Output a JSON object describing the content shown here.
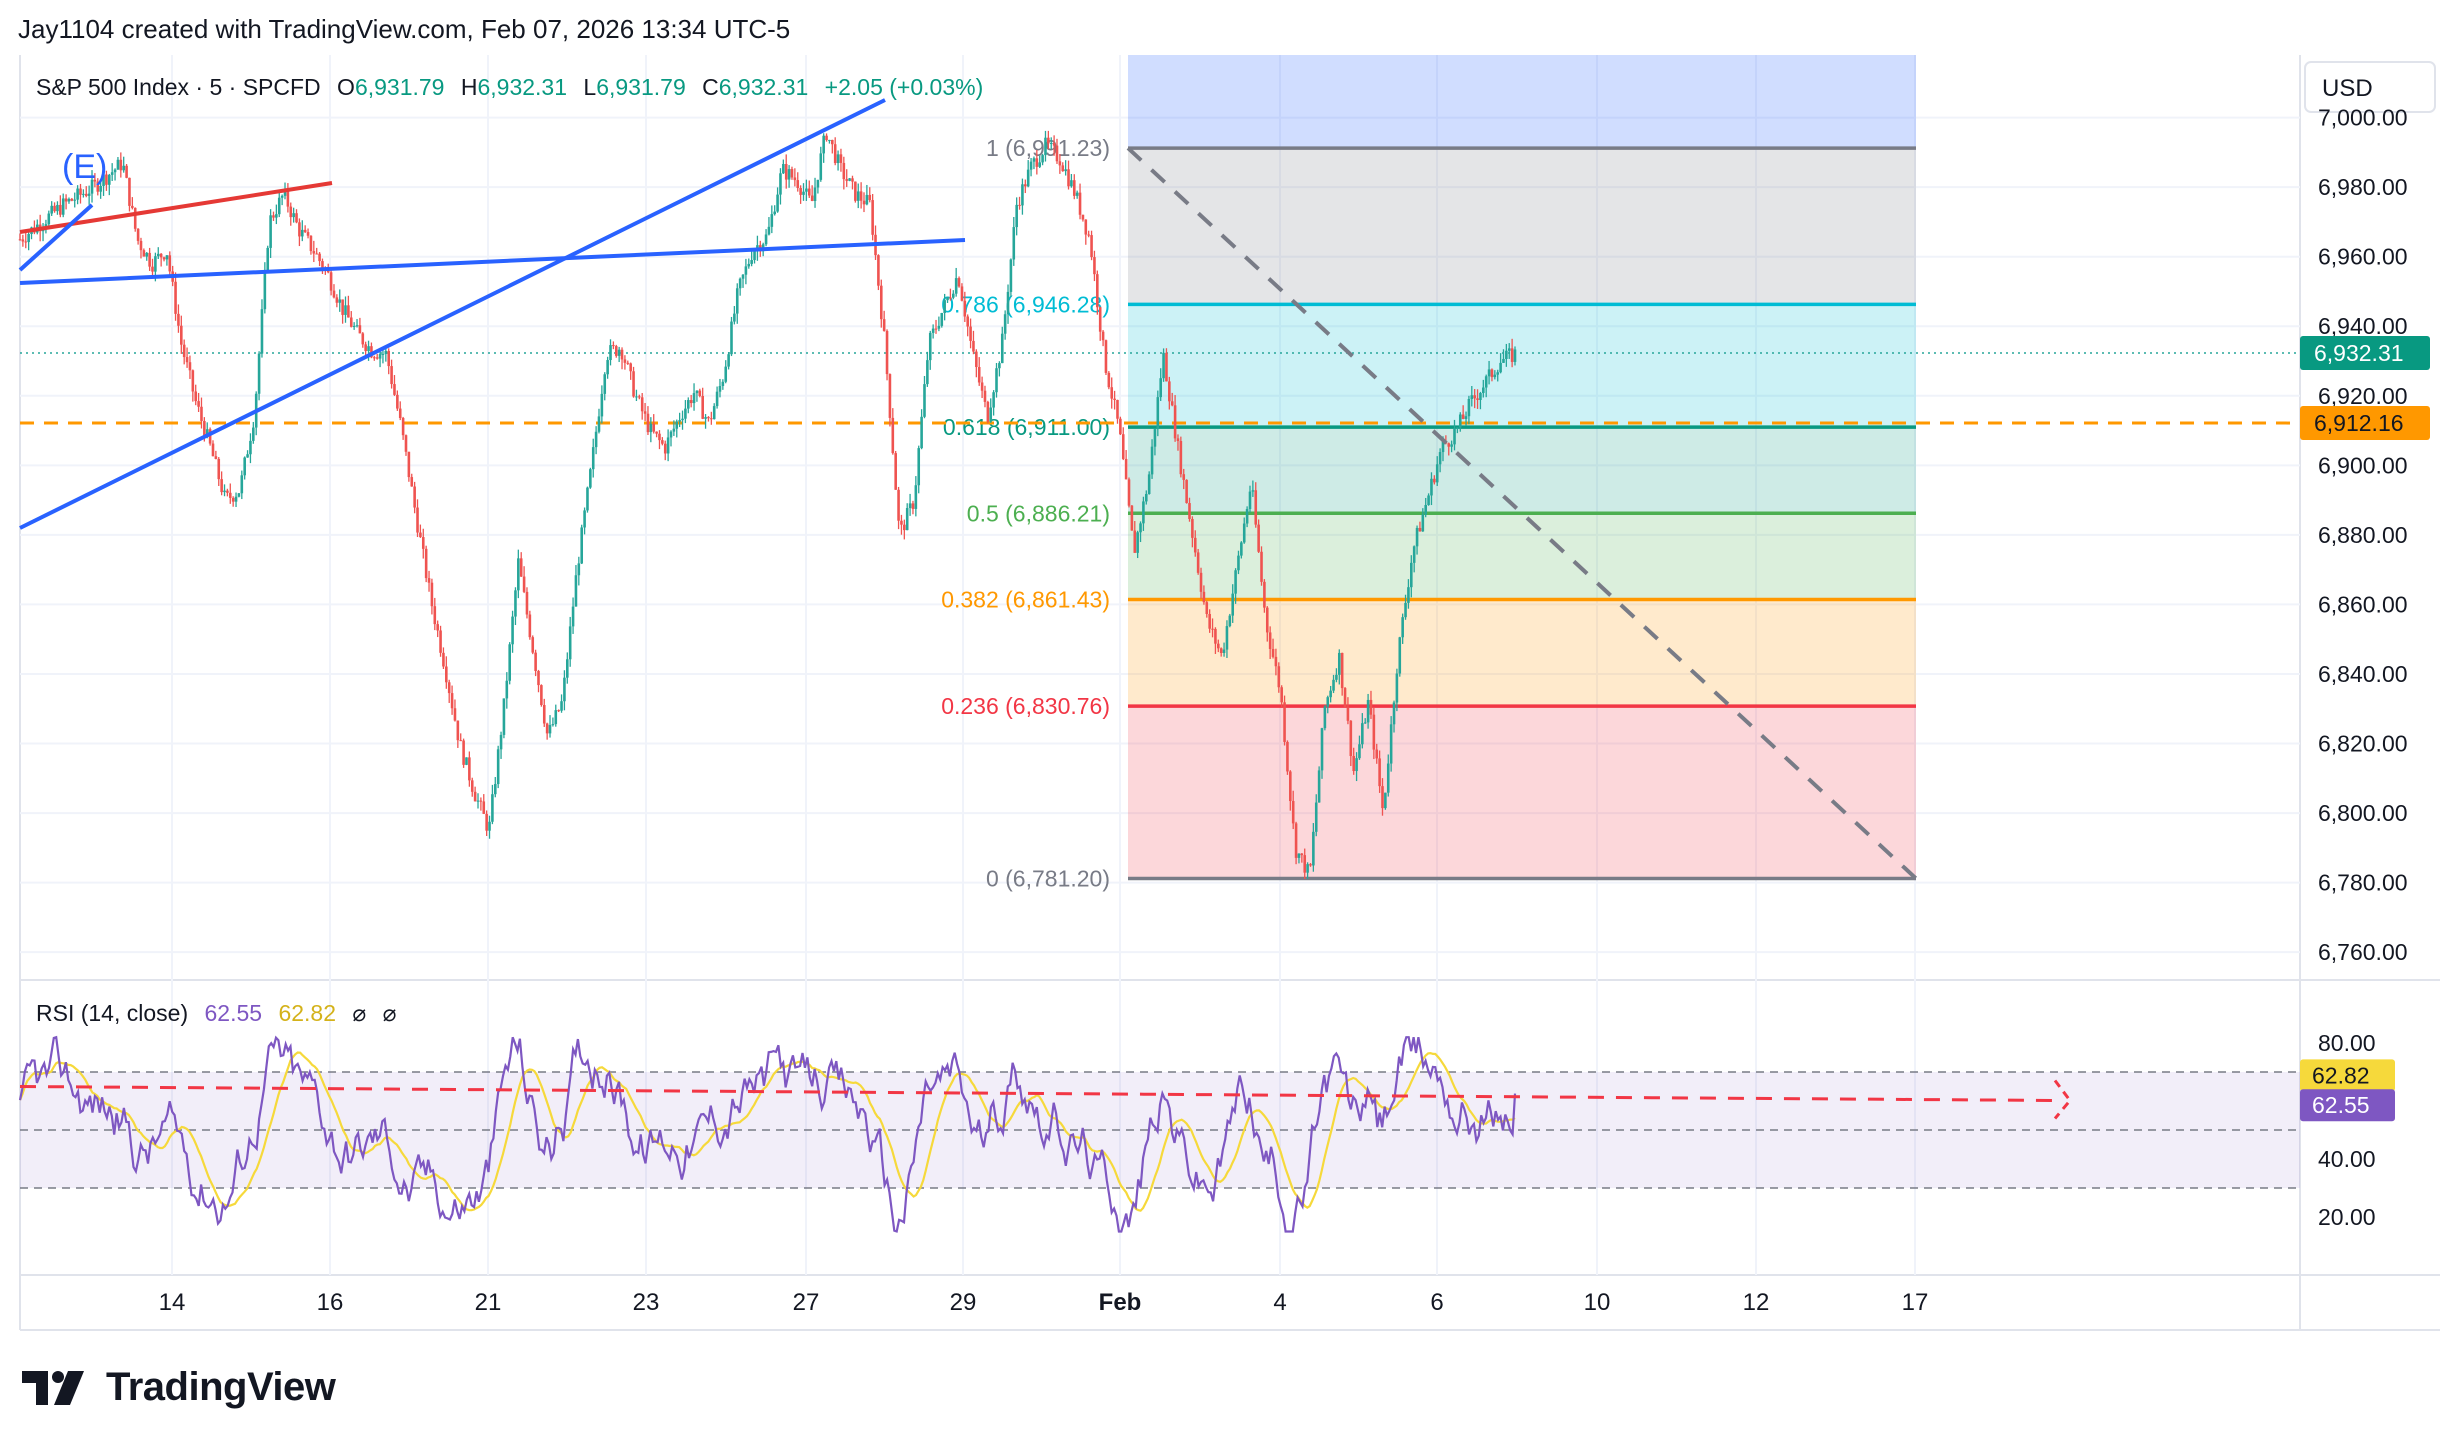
{
  "header": {
    "credit": "Jay1104 created with TradingView.com, Feb 07, 2026 13:34 UTC-5"
  },
  "legend": {
    "symbol": "S&P 500 Index · 5 · SPCFD",
    "o_label": "O",
    "o_value": "6,931.79",
    "h_label": "H",
    "h_value": "6,932.31",
    "l_label": "L",
    "l_value": "6,931.79",
    "c_label": "C",
    "c_value": "6,932.31",
    "change": "+2.05 (+0.03%)"
  },
  "currency_button": "USD",
  "wave_label": "(E)",
  "rsi_legend": {
    "label": "RSI (14, close)",
    "rsi_value": "62.55",
    "ma_value": "62.82",
    "icon1": "⌀",
    "icon2": "⌀"
  },
  "price_badges": {
    "last": "6,932.31",
    "dashed_level": "6,912.16",
    "rsi_ma": "62.82",
    "rsi": "62.55"
  },
  "footer": {
    "logo_text": "TradingView"
  },
  "colors": {
    "up": "#26a69a",
    "down": "#ef5350",
    "trend_blue": "#2962ff",
    "trend_red": "#e53935",
    "rsi_line": "#7e57c2",
    "rsi_ma": "#f6d93b",
    "dashed_orange": "#ff9800"
  },
  "chart_data": {
    "type": "candlestick",
    "x_tick_labels": [
      "14",
      "16",
      "21",
      "23",
      "27",
      "29",
      "Feb",
      "4",
      "6",
      "10",
      "12",
      "17"
    ],
    "y_tick_labels": [
      "7,000.00",
      "6,980.00",
      "6,960.00",
      "6,940.00",
      "6,920.00",
      "6,900.00",
      "6,880.00",
      "6,860.00",
      "6,840.00",
      "6,820.00",
      "6,800.00",
      "6,780.00",
      "6,760.00"
    ],
    "ylim": [
      6752,
      7018
    ],
    "price_path": [
      [
        0,
        6965
      ],
      [
        3,
        6975
      ],
      [
        5,
        6980
      ],
      [
        7,
        6987
      ],
      [
        8,
        6965
      ],
      [
        9,
        6958
      ],
      [
        10,
        6962
      ],
      [
        11,
        6935
      ],
      [
        12,
        6918
      ],
      [
        13,
        6905
      ],
      [
        14,
        6890
      ],
      [
        15,
        6893
      ],
      [
        16,
        6915
      ],
      [
        17,
        6970
      ],
      [
        18,
        6978
      ],
      [
        19,
        6968
      ],
      [
        20,
        6962
      ],
      [
        21,
        6955
      ],
      [
        22,
        6945
      ],
      [
        23,
        6938
      ],
      [
        24,
        6933
      ],
      [
        25,
        6932
      ],
      [
        26,
        6911
      ],
      [
        27,
        6886
      ],
      [
        28,
        6862
      ],
      [
        29,
        6842
      ],
      [
        30,
        6820
      ],
      [
        31,
        6806
      ],
      [
        32,
        6795
      ],
      [
        33,
        6830
      ],
      [
        34,
        6872
      ],
      [
        35,
        6847
      ],
      [
        36,
        6822
      ],
      [
        37,
        6832
      ],
      [
        38,
        6870
      ],
      [
        39,
        6900
      ],
      [
        40,
        6932
      ],
      [
        41,
        6934
      ],
      [
        42,
        6920
      ],
      [
        43,
        6910
      ],
      [
        44,
        6905
      ],
      [
        45,
        6914
      ],
      [
        46,
        6921
      ],
      [
        47,
        6912
      ],
      [
        48,
        6926
      ],
      [
        49,
        6950
      ],
      [
        50,
        6962
      ],
      [
        51,
        6966
      ],
      [
        52,
        6985
      ],
      [
        53,
        6982
      ],
      [
        54,
        6975
      ],
      [
        55,
        6996
      ],
      [
        56,
        6985
      ],
      [
        57,
        6978
      ],
      [
        58,
        6975
      ],
      [
        59,
        6935
      ],
      [
        60,
        6880
      ],
      [
        61,
        6890
      ],
      [
        62,
        6935
      ],
      [
        63,
        6945
      ],
      [
        64,
        6955
      ],
      [
        65,
        6932
      ],
      [
        66,
        6914
      ],
      [
        67,
        6935
      ],
      [
        68,
        6975
      ],
      [
        69,
        6986
      ],
      [
        70,
        6992
      ],
      [
        71,
        6988
      ],
      [
        72,
        6978
      ],
      [
        73,
        6965
      ],
      [
        74,
        6930
      ],
      [
        75,
        6910
      ],
      [
        76,
        6875
      ],
      [
        77,
        6896
      ],
      [
        78,
        6932
      ],
      [
        79,
        6905
      ],
      [
        80,
        6880
      ],
      [
        81,
        6855
      ],
      [
        82,
        6845
      ],
      [
        83,
        6870
      ],
      [
        84,
        6895
      ],
      [
        85,
        6855
      ],
      [
        86,
        6835
      ],
      [
        87,
        6790
      ],
      [
        88,
        6782
      ],
      [
        89,
        6830
      ],
      [
        90,
        6845
      ],
      [
        91,
        6812
      ],
      [
        92,
        6832
      ],
      [
        93,
        6800
      ],
      [
        94,
        6845
      ],
      [
        95,
        6875
      ],
      [
        96,
        6890
      ],
      [
        97,
        6905
      ],
      [
        98,
        6910
      ],
      [
        99,
        6918
      ],
      [
        100,
        6924
      ],
      [
        101,
        6930
      ],
      [
        102,
        6932
      ]
    ],
    "fib_retracement": {
      "high": 6991.23,
      "low": 6781.2,
      "levels": [
        {
          "ratio": 1,
          "price": 6991.23,
          "label": "1 (6,991.23)",
          "color": "#787b86"
        },
        {
          "ratio": 0.786,
          "price": 6946.28,
          "label": "0.786 (6,946.28)",
          "color": "#00bcd4"
        },
        {
          "ratio": 0.618,
          "price": 6911.0,
          "label": "0.618 (6,911.00)",
          "color": "#089981"
        },
        {
          "ratio": 0.5,
          "price": 6886.21,
          "label": "0.5 (6,886.21)",
          "color": "#4caf50"
        },
        {
          "ratio": 0.382,
          "price": 6861.43,
          "label": "0.382 (6,861.43)",
          "color": "#ff9800"
        },
        {
          "ratio": 0.236,
          "price": 6830.76,
          "label": "0.236 (6,830.76)",
          "color": "#f23645"
        },
        {
          "ratio": 0,
          "price": 6781.2,
          "label": "0 (6,781.20)",
          "color": "#787b86"
        }
      ]
    },
    "horizontal_dashed_level": 6912.16,
    "last_price": 6932.31,
    "rsi": {
      "period": 14,
      "ylim": [
        0,
        100
      ],
      "tick_labels": [
        "80.00",
        "40.00",
        "20.00"
      ],
      "bands": [
        70,
        50,
        30
      ],
      "last_rsi": 62.55,
      "last_ma": 62.82,
      "projected_level": 65
    }
  }
}
